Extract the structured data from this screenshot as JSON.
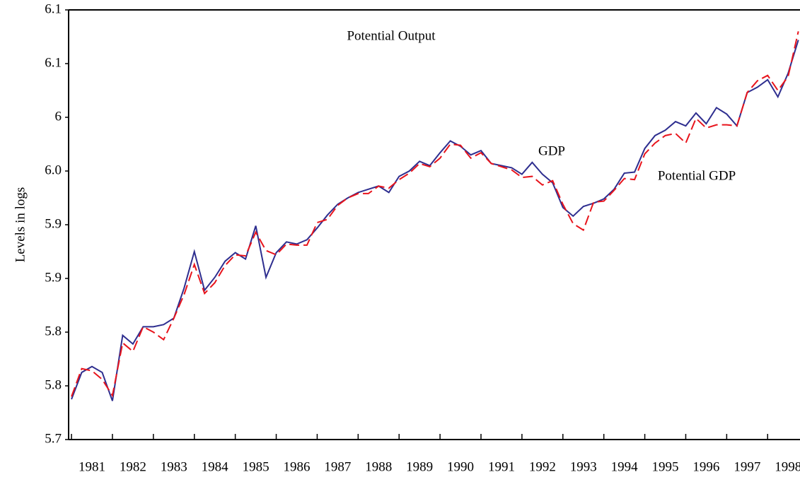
{
  "chart_data": {
    "type": "line",
    "title": "Potential Output",
    "y_label": "Levels in logs",
    "x": [
      1981,
      1981.25,
      1981.5,
      1981.75,
      1982,
      1982.25,
      1982.5,
      1982.75,
      1983,
      1983.25,
      1983.5,
      1983.75,
      1984,
      1984.25,
      1984.5,
      1984.75,
      1985,
      1985.25,
      1985.5,
      1985.75,
      1986,
      1986.25,
      1986.5,
      1986.75,
      1987,
      1987.25,
      1987.5,
      1987.75,
      1988,
      1988.25,
      1988.5,
      1988.75,
      1989,
      1989.25,
      1989.5,
      1989.75,
      1990,
      1990.25,
      1990.5,
      1990.75,
      1991,
      1991.25,
      1991.5,
      1991.75,
      1992,
      1992.25,
      1992.5,
      1992.75,
      1993,
      1993.25,
      1993.5,
      1993.75,
      1994,
      1994.25,
      1994.5,
      1994.75,
      1995,
      1995.25,
      1995.5,
      1995.75,
      1996,
      1996.25,
      1996.5,
      1996.75,
      1997,
      1997.25,
      1997.5,
      1997.75,
      1998,
      1998.25,
      1998.5,
      1998.75
    ],
    "series": [
      {
        "name": "GDP",
        "color": "#2e2e8f",
        "dash": false,
        "values": [
          5.7375,
          5.7625,
          5.768,
          5.7625,
          5.736,
          5.797,
          5.789,
          5.805,
          5.805,
          5.807,
          5.813,
          5.841,
          5.875,
          5.839,
          5.851,
          5.866,
          5.874,
          5.868,
          5.899,
          5.851,
          5.874,
          5.884,
          5.882,
          5.886,
          5.897,
          5.909,
          5.919,
          5.925,
          5.93,
          5.933,
          5.936,
          5.93,
          5.945,
          5.95,
          5.959,
          5.955,
          5.967,
          5.978,
          5.973,
          5.965,
          5.969,
          5.957,
          5.955,
          5.953,
          5.947,
          5.958,
          5.947,
          5.939,
          5.916,
          5.908,
          5.917,
          5.92,
          5.924,
          5.933,
          5.948,
          5.949,
          5.971,
          5.983,
          5.988,
          5.996,
          5.992,
          6.004,
          5.994,
          6.009,
          6.003,
          5.992,
          6.023,
          6.028,
          6.035,
          6.019,
          6.041,
          6.072
        ]
      },
      {
        "name": "Potential GDP",
        "color": "#e8141c",
        "dash": true,
        "values": [
          5.74,
          5.766,
          5.764,
          5.756,
          5.741,
          5.79,
          5.782,
          5.805,
          5.8,
          5.793,
          5.813,
          5.835,
          5.863,
          5.836,
          5.846,
          5.862,
          5.872,
          5.871,
          5.893,
          5.876,
          5.872,
          5.882,
          5.881,
          5.881,
          5.902,
          5.905,
          5.918,
          5.925,
          5.929,
          5.929,
          5.936,
          5.934,
          5.942,
          5.948,
          5.957,
          5.954,
          5.962,
          5.975,
          5.974,
          5.962,
          5.967,
          5.957,
          5.954,
          5.951,
          5.944,
          5.945,
          5.937,
          5.941,
          5.919,
          5.901,
          5.895,
          5.921,
          5.922,
          5.932,
          5.943,
          5.942,
          5.966,
          5.976,
          5.983,
          5.985,
          5.976,
          5.999,
          5.99,
          5.993,
          5.993,
          5.992,
          6.023,
          6.034,
          6.039,
          6.025,
          6.038,
          6.08
        ]
      }
    ],
    "xlim": [
      1980.93,
      1998.79
    ],
    "xticks": [
      1981,
      1982,
      1983,
      1984,
      1985,
      1986,
      1987,
      1988,
      1989,
      1990,
      1991,
      1992,
      1993,
      1994,
      1995,
      1996,
      1997,
      1998
    ],
    "ylim": [
      5.7,
      6.1
    ],
    "yticks": [
      5.7,
      {
        "value": 5.75,
        "label": "5.8"
      },
      5.8,
      {
        "value": 5.85,
        "label": "5.9"
      },
      5.9,
      {
        "value": 5.95,
        "label": "6.0"
      },
      6.0,
      {
        "value": 6.05,
        "label": "6.1"
      },
      6.1
    ],
    "grid": false
  }
}
